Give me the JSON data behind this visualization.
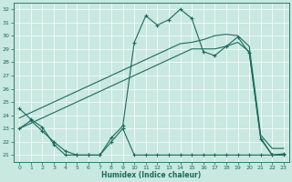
{
  "xlabel": "Humidex (Indice chaleur)",
  "bg_color": "#c8e8e0",
  "line_color": "#1a6b5a",
  "grid_color": "#b0d8cc",
  "xlim": [
    -0.5,
    23.5
  ],
  "ylim": [
    20.5,
    32.5
  ],
  "yticks": [
    21,
    22,
    23,
    24,
    25,
    26,
    27,
    28,
    29,
    30,
    31,
    32
  ],
  "xticks": [
    0,
    1,
    2,
    3,
    4,
    5,
    6,
    7,
    8,
    9,
    10,
    11,
    12,
    13,
    14,
    15,
    16,
    17,
    18,
    19,
    20,
    21,
    22,
    23
  ],
  "s1_x": [
    0,
    1,
    2,
    3,
    4,
    5,
    6,
    7,
    8,
    9,
    10,
    11,
    12,
    13,
    14,
    15,
    16,
    17,
    18,
    19,
    20,
    21,
    22,
    23
  ],
  "s1_y": [
    24.5,
    23.7,
    23.1,
    21.8,
    21.0,
    21.0,
    21.0,
    21.0,
    22.3,
    23.2,
    29.5,
    31.5,
    30.8,
    31.2,
    32.0,
    31.3,
    28.8,
    28.5,
    29.2,
    29.9,
    28.7,
    22.2,
    21.0,
    21.1
  ],
  "s2_x": [
    0,
    1,
    2,
    3,
    4,
    5,
    6,
    7,
    8,
    9,
    10,
    11,
    12,
    13,
    14,
    15,
    16,
    17,
    18,
    19,
    20,
    21,
    22,
    23
  ],
  "s2_y": [
    23.0,
    23.6,
    22.8,
    22.0,
    21.3,
    21.0,
    21.0,
    21.0,
    22.0,
    23.0,
    21.0,
    21.0,
    21.0,
    21.0,
    21.0,
    21.0,
    21.0,
    21.0,
    21.0,
    21.0,
    21.0,
    21.0,
    21.0,
    21.0
  ],
  "s3_x": [
    0,
    1,
    2,
    3,
    4,
    5,
    6,
    7,
    8,
    9,
    10,
    11,
    12,
    13,
    14,
    15,
    16,
    17,
    18,
    19,
    20,
    21,
    22,
    23
  ],
  "s3_y": [
    23.0,
    23.4,
    23.8,
    24.2,
    24.6,
    25.0,
    25.4,
    25.8,
    26.2,
    26.6,
    27.0,
    27.4,
    27.8,
    28.2,
    28.6,
    29.0,
    29.0,
    29.0,
    29.2,
    29.5,
    28.8,
    22.3,
    21.0,
    21.0
  ],
  "s4_x": [
    0,
    1,
    2,
    3,
    4,
    5,
    6,
    7,
    8,
    9,
    10,
    11,
    12,
    13,
    14,
    15,
    16,
    17,
    18,
    19,
    20,
    21,
    22,
    23
  ],
  "s4_y": [
    23.8,
    24.2,
    24.6,
    25.0,
    25.4,
    25.8,
    26.2,
    26.6,
    27.0,
    27.4,
    27.8,
    28.2,
    28.6,
    29.0,
    29.4,
    29.5,
    29.7,
    30.0,
    30.1,
    30.0,
    29.2,
    22.5,
    21.5,
    21.5
  ]
}
